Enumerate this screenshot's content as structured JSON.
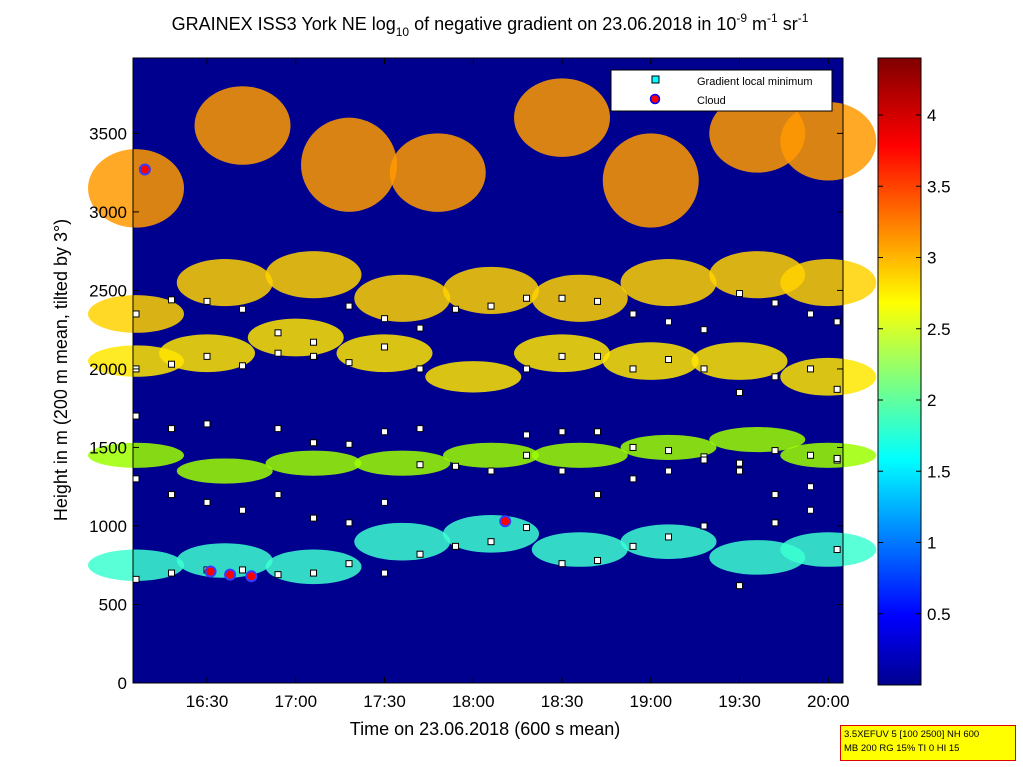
{
  "chart_data": {
    "type": "heatmap",
    "title_parts": {
      "main": "GRAINEX ISS3 York NE log",
      "sub1": "10",
      "mid": " of negative gradient on 23.06.2018 in 10",
      "sup1": "-9",
      "unit1": " m",
      "sup2": "-1",
      "unit2": " sr",
      "sup3": "-1"
    },
    "xlabel": "Time on 23.06.2018 (600 s mean)",
    "ylabel": "Height in m (200 m mean, tilted by 3°)",
    "x_ticks": [
      "16:30",
      "17:00",
      "17:30",
      "18:00",
      "18:30",
      "19:00",
      "19:30",
      "20:00"
    ],
    "x_tick_hours": [
      16.5,
      17.0,
      17.5,
      18.0,
      18.5,
      19.0,
      19.5,
      20.0
    ],
    "xlim_hours": [
      16.083,
      20.083
    ],
    "y_ticks": [
      0,
      500,
      1000,
      1500,
      2000,
      2500,
      3000,
      3500
    ],
    "ylim": [
      0,
      3980
    ],
    "colorbar": {
      "colormap": "jet",
      "range": [
        0,
        4.4
      ],
      "ticks": [
        0.5,
        1,
        1.5,
        2,
        2.5,
        3,
        3.5,
        4
      ],
      "tick_labels": [
        "0.5",
        "1",
        "1.5",
        "2",
        "2.5",
        "3",
        "3.5",
        "4"
      ]
    },
    "legend": {
      "position": "top-right",
      "entries": [
        {
          "label": "Gradient local minimum",
          "marker": "square",
          "color": "#00ffff"
        },
        {
          "label": "Cloud",
          "marker": "circle",
          "color": "#ff0000"
        }
      ]
    },
    "layers": [
      {
        "name": "top aerosol layer",
        "bands": [
          [
            16.1,
            3150,
            250
          ],
          [
            16.7,
            3550,
            250
          ],
          [
            17.3,
            3300,
            300
          ],
          [
            17.8,
            3250,
            250
          ],
          [
            18.5,
            3600,
            250
          ],
          [
            19.0,
            3200,
            300
          ],
          [
            19.6,
            3500,
            250
          ],
          [
            20.0,
            3450,
            250
          ]
        ]
      },
      {
        "name": "upper layer",
        "bands": [
          [
            16.1,
            2350,
            120
          ],
          [
            16.6,
            2550,
            150
          ],
          [
            17.1,
            2600,
            150
          ],
          [
            17.6,
            2450,
            150
          ],
          [
            18.1,
            2500,
            150
          ],
          [
            18.6,
            2450,
            150
          ],
          [
            19.1,
            2550,
            150
          ],
          [
            19.6,
            2600,
            150
          ],
          [
            20.0,
            2550,
            150
          ]
        ]
      },
      {
        "name": "middle layer",
        "bands": [
          [
            16.1,
            2050,
            100
          ],
          [
            16.5,
            2100,
            120
          ],
          [
            17.0,
            2200,
            120
          ],
          [
            17.5,
            2100,
            120
          ],
          [
            18.0,
            1950,
            100
          ],
          [
            18.5,
            2100,
            120
          ],
          [
            19.0,
            2050,
            120
          ],
          [
            19.5,
            2050,
            120
          ],
          [
            20.0,
            1950,
            120
          ]
        ]
      },
      {
        "name": "lower layer",
        "bands": [
          [
            16.1,
            1450,
            80
          ],
          [
            16.6,
            1350,
            80
          ],
          [
            17.1,
            1400,
            80
          ],
          [
            17.6,
            1400,
            80
          ],
          [
            18.1,
            1450,
            80
          ],
          [
            18.6,
            1450,
            80
          ],
          [
            19.1,
            1500,
            80
          ],
          [
            19.6,
            1550,
            80
          ],
          [
            20.0,
            1450,
            80
          ]
        ]
      },
      {
        "name": "boundary layer",
        "bands": [
          [
            16.1,
            750,
            100
          ],
          [
            16.6,
            780,
            110
          ],
          [
            17.1,
            740,
            110
          ],
          [
            17.6,
            900,
            120
          ],
          [
            18.1,
            950,
            120
          ],
          [
            18.6,
            850,
            110
          ],
          [
            19.1,
            900,
            110
          ],
          [
            19.6,
            800,
            110
          ],
          [
            20.0,
            850,
            110
          ]
        ]
      }
    ],
    "gradient_minima": [
      {
        "name": "boundary layer minima",
        "points": [
          [
            16.1,
            660
          ],
          [
            16.3,
            700
          ],
          [
            16.5,
            720
          ],
          [
            16.7,
            720
          ],
          [
            16.9,
            690
          ],
          [
            17.1,
            700
          ],
          [
            17.3,
            760
          ],
          [
            17.5,
            700
          ],
          [
            17.7,
            820
          ],
          [
            17.9,
            870
          ],
          [
            18.1,
            900
          ],
          [
            18.3,
            990
          ],
          [
            18.5,
            760
          ],
          [
            18.7,
            780
          ],
          [
            18.9,
            870
          ],
          [
            19.1,
            930
          ],
          [
            19.3,
            1000
          ],
          [
            19.5,
            620
          ],
          [
            19.7,
            1020
          ],
          [
            19.9,
            1100
          ],
          [
            20.05,
            850
          ]
        ]
      },
      {
        "name": "lower layer minima",
        "points": [
          [
            16.1,
            1300
          ],
          [
            16.3,
            1200
          ],
          [
            16.5,
            1150
          ],
          [
            16.7,
            1100
          ],
          [
            16.9,
            1200
          ],
          [
            17.1,
            1050
          ],
          [
            17.3,
            1020
          ],
          [
            17.5,
            1150
          ],
          [
            17.7,
            1390
          ],
          [
            17.9,
            1380
          ],
          [
            18.1,
            1350
          ],
          [
            18.3,
            1450
          ],
          [
            18.5,
            1350
          ],
          [
            18.7,
            1200
          ],
          [
            18.9,
            1300
          ],
          [
            19.1,
            1350
          ],
          [
            19.3,
            1440
          ],
          [
            19.5,
            1350
          ],
          [
            19.7,
            1200
          ],
          [
            19.9,
            1250
          ],
          [
            20.05,
            1420
          ]
        ]
      },
      {
        "name": "middle layer minima",
        "points": [
          [
            16.1,
            1700
          ],
          [
            16.3,
            1620
          ],
          [
            16.5,
            1650
          ],
          [
            16.9,
            1620
          ],
          [
            17.1,
            1530
          ],
          [
            17.3,
            1520
          ],
          [
            17.5,
            1600
          ],
          [
            17.7,
            1620
          ],
          [
            18.3,
            1580
          ],
          [
            18.5,
            1600
          ],
          [
            18.7,
            1600
          ],
          [
            18.9,
            1500
          ],
          [
            19.1,
            1480
          ],
          [
            19.3,
            1420
          ],
          [
            19.5,
            1400
          ],
          [
            19.7,
            1480
          ],
          [
            19.9,
            1450
          ],
          [
            20.05,
            1430
          ]
        ]
      },
      {
        "name": "upper layer minima",
        "points": [
          [
            16.1,
            2000
          ],
          [
            16.3,
            2030
          ],
          [
            16.5,
            2080
          ],
          [
            16.7,
            2020
          ],
          [
            16.9,
            2100
          ],
          [
            17.1,
            2080
          ],
          [
            17.3,
            2040
          ],
          [
            17.5,
            2140
          ],
          [
            17.7,
            2000
          ],
          [
            18.3,
            2000
          ],
          [
            18.5,
            2080
          ],
          [
            18.7,
            2080
          ],
          [
            18.9,
            2000
          ],
          [
            19.1,
            2060
          ],
          [
            19.3,
            2000
          ],
          [
            19.5,
            1850
          ],
          [
            19.7,
            1950
          ],
          [
            19.9,
            2000
          ],
          [
            20.05,
            1870
          ]
        ]
      },
      {
        "name": "top layer minima",
        "points": [
          [
            16.1,
            2350
          ],
          [
            16.3,
            2440
          ],
          [
            16.5,
            2430
          ],
          [
            16.7,
            2380
          ],
          [
            16.9,
            2230
          ],
          [
            17.1,
            2170
          ],
          [
            17.3,
            2400
          ],
          [
            17.5,
            2320
          ],
          [
            17.7,
            2260
          ],
          [
            17.9,
            2380
          ],
          [
            18.1,
            2400
          ],
          [
            18.3,
            2450
          ],
          [
            18.5,
            2450
          ],
          [
            18.7,
            2430
          ],
          [
            18.9,
            2350
          ],
          [
            19.1,
            2300
          ],
          [
            19.3,
            2250
          ],
          [
            19.5,
            2480
          ],
          [
            19.7,
            2420
          ],
          [
            19.9,
            2350
          ],
          [
            20.05,
            2300
          ]
        ]
      }
    ],
    "clouds": [
      {
        "time_hours": 16.15,
        "height": 3270
      },
      {
        "time_hours": 16.52,
        "height": 710
      },
      {
        "time_hours": 16.63,
        "height": 690
      },
      {
        "time_hours": 16.75,
        "height": 680
      },
      {
        "time_hours": 18.18,
        "height": 1030
      }
    ]
  },
  "annotation_box": {
    "line1": "3.5XEFUV 5 [100 2500] NH 600",
    "line2": "MB 200 RG 15% TI 0 HI 15"
  }
}
